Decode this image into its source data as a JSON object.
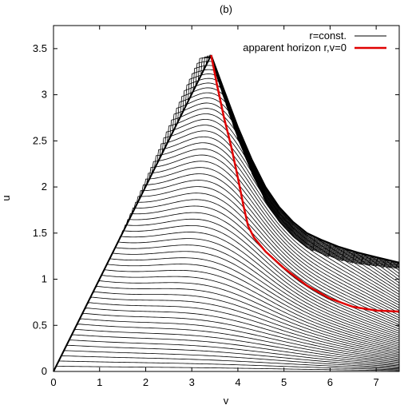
{
  "chart_data": {
    "type": "line",
    "title": "(b)",
    "xlabel": "v",
    "ylabel": "u",
    "xlim": [
      0,
      7.5
    ],
    "ylim": [
      0,
      3.75
    ],
    "xticks": [
      "0",
      "1",
      "2",
      "3",
      "4",
      "5",
      "6",
      "7"
    ],
    "yticks": [
      "0",
      "0.5",
      "1",
      "1.5",
      "2",
      "2.5",
      "3",
      "3.5"
    ],
    "grid": false,
    "legend_position": "top-right",
    "peak": {
      "v": 3.42,
      "u": 3.43
    },
    "boundary_right": [
      {
        "v": 3.42,
        "u": 3.43
      },
      {
        "v": 3.7,
        "u": 3.05
      },
      {
        "v": 4.0,
        "u": 2.65
      },
      {
        "v": 4.3,
        "u": 2.3
      },
      {
        "v": 4.6,
        "u": 2.0
      },
      {
        "v": 4.9,
        "u": 1.78
      },
      {
        "v": 5.2,
        "u": 1.62
      },
      {
        "v": 5.5,
        "u": 1.5
      },
      {
        "v": 5.8,
        "u": 1.43
      },
      {
        "v": 6.2,
        "u": 1.35
      },
      {
        "v": 6.6,
        "u": 1.29
      },
      {
        "v": 7.0,
        "u": 1.24
      },
      {
        "v": 7.5,
        "u": 1.18
      }
    ],
    "line_count": 60,
    "series": [
      {
        "name": "r=const.",
        "color": "#000000",
        "note": "family of constant-r contour lines"
      },
      {
        "name": "apparent horizon r,v=0",
        "color": "#e00000",
        "points": [
          {
            "v": 3.42,
            "u": 3.43
          },
          {
            "v": 3.55,
            "u": 3.1
          },
          {
            "v": 3.7,
            "u": 2.75
          },
          {
            "v": 3.85,
            "u": 2.45
          },
          {
            "v": 4.0,
            "u": 2.1
          },
          {
            "v": 4.12,
            "u": 1.8
          },
          {
            "v": 4.22,
            "u": 1.58
          },
          {
            "v": 4.35,
            "u": 1.45
          },
          {
            "v": 4.6,
            "u": 1.3
          },
          {
            "v": 5.0,
            "u": 1.12
          },
          {
            "v": 5.5,
            "u": 0.93
          },
          {
            "v": 6.0,
            "u": 0.79
          },
          {
            "v": 6.5,
            "u": 0.7
          },
          {
            "v": 7.0,
            "u": 0.66
          },
          {
            "v": 7.5,
            "u": 0.65
          }
        ]
      }
    ]
  }
}
